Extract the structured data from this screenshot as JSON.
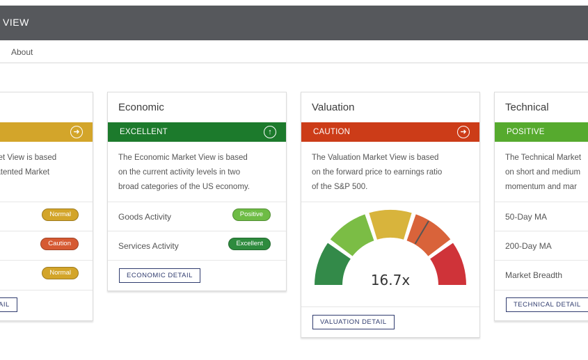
{
  "header": {
    "title": "VIEW"
  },
  "nav": {
    "about": "About"
  },
  "cards": {
    "first": {
      "banner_color": "#d3a52a",
      "desc": [
        "rket View is based",
        "patented Market"
      ],
      "rows": [
        {
          "badge": "Normal",
          "badge_color": "#d3a52a"
        },
        {
          "badge": "Caution",
          "badge_color": "#d65a33"
        },
        {
          "badge": "Normal",
          "badge_color": "#d3a52a"
        }
      ],
      "detail": "AIL"
    },
    "economic": {
      "title": "Economic",
      "status": "EXCELLENT",
      "banner_color": "#1c7a2c",
      "desc": [
        "The Economic Market View is based",
        "on the current activity levels in two",
        "broad categories of the US economy."
      ],
      "rows": [
        {
          "label": "Goods Activity",
          "badge": "Positive",
          "badge_color": "#6ebc45"
        },
        {
          "label": "Services Activity",
          "badge": "Excellent",
          "badge_color": "#2e8b3e"
        }
      ],
      "detail": "ECONOMIC DETAIL"
    },
    "valuation": {
      "title": "Valuation",
      "status": "CAUTION",
      "banner_color": "#cc3c18",
      "desc": [
        "The Valuation Market View is based",
        "on the forward price to earnings ratio",
        "of the S&P 500."
      ],
      "gauge": {
        "value": "16.7x",
        "needle_segment": 3,
        "segment_colors": [
          "#338a49",
          "#7bbd45",
          "#d8b43c",
          "#d9633a",
          "#cf3339"
        ]
      },
      "detail": "VALUATION DETAIL"
    },
    "technical": {
      "title": "Technical",
      "status": "POSITIVE",
      "banner_color": "#56aa2e",
      "desc": [
        "The Technical Market",
        "on short and medium",
        "momentum and mar"
      ],
      "rows": [
        {
          "label": "50-Day MA"
        },
        {
          "label": "200-Day MA"
        },
        {
          "label": "Market Breadth"
        }
      ],
      "detail": "TECHNICAL DETAIL"
    }
  }
}
